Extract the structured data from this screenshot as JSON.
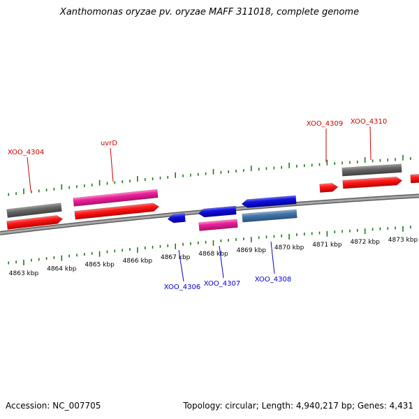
{
  "title": "Xanthomonas oryzae pv. oryzae MAFF 311018, complete genome",
  "footer": {
    "accession": "Accession: NC_007705",
    "summary": "Topology: circular; Length: 4,940,217 bp; Genes: 4,431"
  },
  "colors": {
    "backbone": "#8a8a8a",
    "tick": "#1a7a1a",
    "label_top": "#cc0000",
    "label_bottom": "#0000cc",
    "gene_red": "#ee1111",
    "gene_gray": "#6a6a6a",
    "gene_pink": "#ee2299",
    "gene_blue": "#1111dd",
    "gene_steel": "#4477aa"
  },
  "scale_labels": [
    "4863 kbp",
    "4864 kbp",
    "4865 kbp",
    "4866 kbp",
    "4867 kbp",
    "4868 kbp",
    "4869 kbp",
    "4870 kbp",
    "4871 kbp",
    "4872 kbp",
    "4873 kbp"
  ],
  "gene_labels": [
    {
      "text": "XOO_4304",
      "strand": "top"
    },
    {
      "text": "uvrD",
      "strand": "top"
    },
    {
      "text": "XOO_4309",
      "strand": "top"
    },
    {
      "text": "XOO_4310",
      "strand": "top"
    },
    {
      "text": "XOO_4306",
      "strand": "bottom"
    },
    {
      "text": "XOO_4307",
      "strand": "bottom"
    },
    {
      "text": "XOO_4308",
      "strand": "bottom"
    }
  ]
}
